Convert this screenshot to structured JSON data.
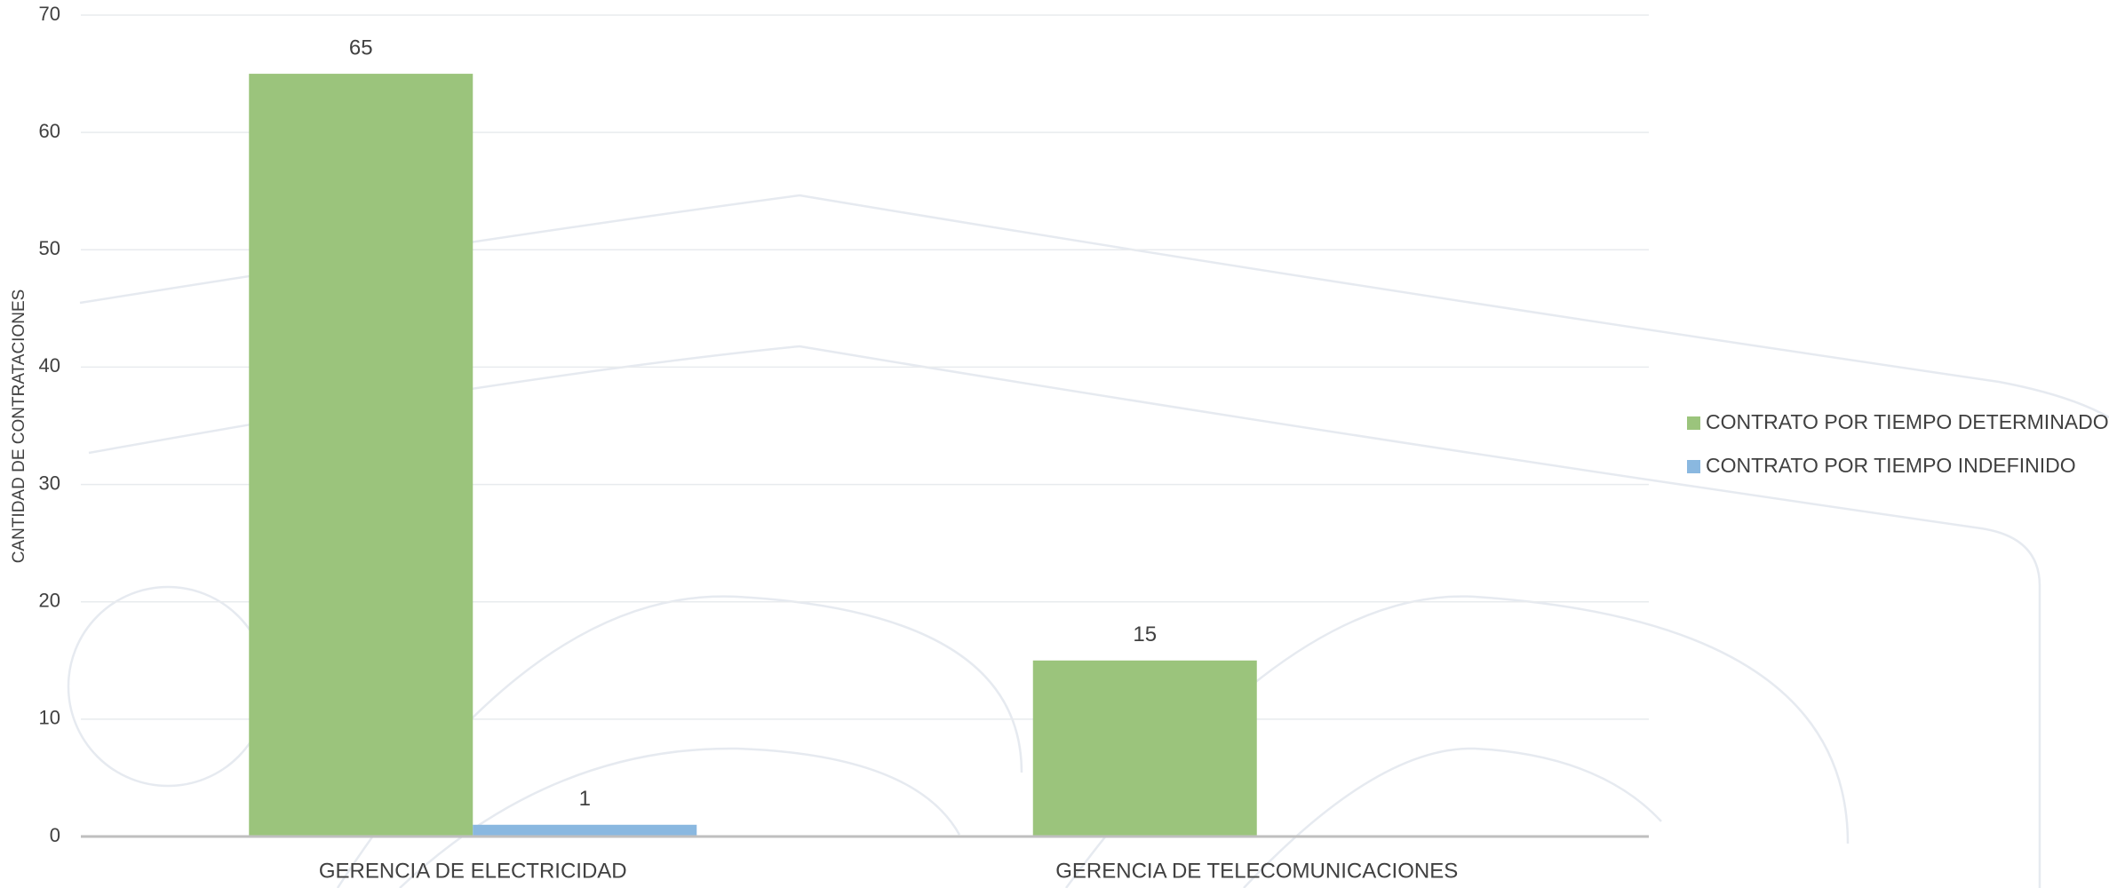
{
  "chart_data": {
    "type": "bar",
    "y_label": "CANTIDAD DE CONTRATACIONES",
    "categories": [
      "GERENCIA DE ELECTRICIDAD",
      "GERENCIA DE TELECOMUNICACIONES"
    ],
    "series": [
      {
        "name": "CONTRATO POR TIEMPO DETERMINADO",
        "color": "#9bc47c",
        "values": [
          65,
          15
        ]
      },
      {
        "name": "CONTRATO POR TIEMPO INDEFINIDO",
        "color": "#8ab8e0",
        "values": [
          1,
          null
        ]
      }
    ],
    "ylim": [
      0,
      70
    ],
    "yticks": [
      0,
      10,
      20,
      30,
      40,
      50,
      60,
      70
    ],
    "grid": true,
    "legend": "right"
  }
}
